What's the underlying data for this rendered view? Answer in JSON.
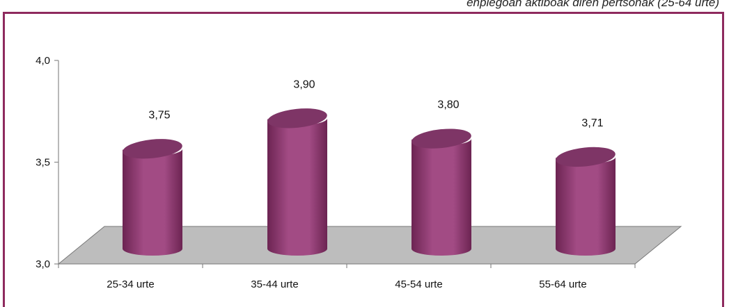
{
  "caption": "enplegoan aktiboak diren pertsonak (25-64 urte)",
  "colors": {
    "bar": "#a24b84",
    "bar_dark": "#6c2452",
    "bar_top": "#7e3566",
    "floor": "#bdbdbd",
    "frame": "#8e2a5e"
  },
  "chart_data": {
    "type": "bar",
    "style": "3d-cylinder",
    "categories": [
      "25-34 urte",
      "35-44 urte",
      "45-54 urte",
      "55-64 urte"
    ],
    "values": [
      3.75,
      3.9,
      3.8,
      3.71
    ],
    "value_labels": [
      "3,75",
      "3,90",
      "3,80",
      "3,71"
    ],
    "ylim": [
      3.0,
      4.0
    ],
    "y_ticks": [
      3.0,
      3.5,
      4.0
    ],
    "y_tick_labels": [
      "3,0",
      "3,5",
      "4,0"
    ],
    "title": "",
    "xlabel": "",
    "ylabel": "",
    "grid": false,
    "legend": "none"
  }
}
